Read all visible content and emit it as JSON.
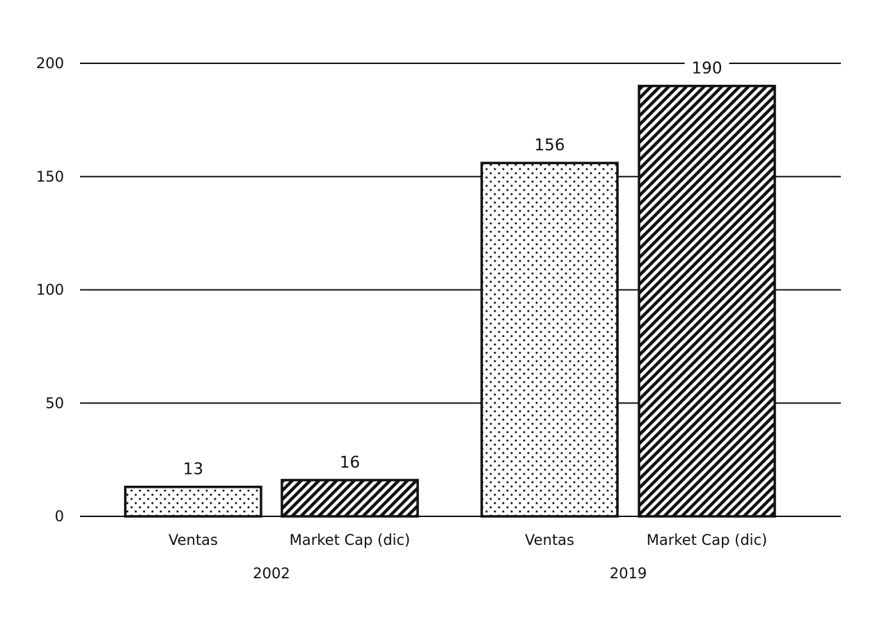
{
  "chart_data": {
    "type": "bar",
    "groups": [
      {
        "label": "2002",
        "bars": [
          {
            "label": "Ventas",
            "value": 13,
            "value_label": "13",
            "pattern": "dots"
          },
          {
            "label": "Market Cap (dic)",
            "value": 16,
            "value_label": "16",
            "pattern": "hatch"
          }
        ]
      },
      {
        "label": "2019",
        "bars": [
          {
            "label": "Ventas",
            "value": 156,
            "value_label": "156",
            "pattern": "dots"
          },
          {
            "label": "Market Cap (dic)",
            "value": 190,
            "value_label": "190",
            "pattern": "hatch"
          }
        ]
      }
    ],
    "y_ticks": [
      "0",
      "50",
      "100",
      "150",
      "200"
    ],
    "ylim": [
      0,
      200
    ],
    "grid": true,
    "legend": false,
    "title": "",
    "xlabel": "",
    "ylabel": "",
    "colors": {
      "ink": "#111111",
      "background": "#ffffff"
    }
  }
}
